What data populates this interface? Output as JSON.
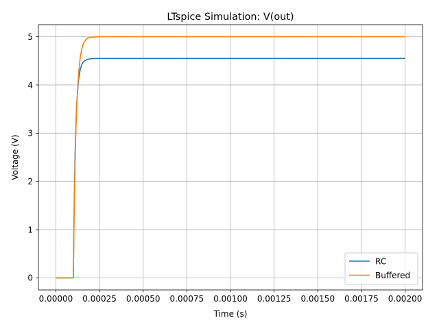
{
  "chart_data": {
    "type": "line",
    "title": "LTspice Simulation: V(out)",
    "xlabel": "Time (s)",
    "ylabel": "Voltage (V)",
    "xlim": [
      -0.0001,
      0.0021
    ],
    "ylim": [
      -0.25,
      5.25
    ],
    "x_ticks": [
      0.0,
      0.00025,
      0.0005,
      0.00075,
      0.001,
      0.00125,
      0.0015,
      0.00175,
      0.002
    ],
    "x_tick_labels": [
      "0.00000",
      "0.00025",
      "0.00050",
      "0.00075",
      "0.00100",
      "0.00125",
      "0.00150",
      "0.00175",
      "0.00200"
    ],
    "y_ticks": [
      0,
      1,
      2,
      3,
      4,
      5
    ],
    "y_tick_labels": [
      "0",
      "1",
      "2",
      "3",
      "4",
      "5"
    ],
    "grid": true,
    "legend_position": "bottom-right",
    "series": [
      {
        "name": "RC",
        "color": "#1f77b4",
        "points": [
          [
            0.0,
            0
          ],
          [
            0.0001,
            0
          ],
          [
            0.000105,
            1.55
          ],
          [
            0.00011,
            2.56
          ],
          [
            0.000115,
            3.22
          ],
          [
            0.00012,
            3.65
          ],
          [
            0.00013,
            4.11
          ],
          [
            0.00014,
            4.33
          ],
          [
            0.00015,
            4.44
          ],
          [
            0.00016,
            4.49
          ],
          [
            0.00018,
            4.53
          ],
          [
            0.0002,
            4.545
          ],
          [
            0.00025,
            4.55
          ],
          [
            0.002,
            4.55
          ]
        ]
      },
      {
        "name": "Buffered",
        "color": "#ff7f0e",
        "points": [
          [
            0.0,
            0
          ],
          [
            0.0001,
            0
          ],
          [
            0.000105,
            1.38
          ],
          [
            0.00011,
            2.38
          ],
          [
            0.000115,
            3.11
          ],
          [
            0.00012,
            3.62
          ],
          [
            0.00013,
            4.23
          ],
          [
            0.00014,
            4.59
          ],
          [
            0.00015,
            4.78
          ],
          [
            0.00016,
            4.88
          ],
          [
            0.00018,
            4.97
          ],
          [
            0.0002,
            4.99
          ],
          [
            0.00025,
            5.0
          ],
          [
            0.002,
            5.0
          ]
        ]
      }
    ]
  }
}
